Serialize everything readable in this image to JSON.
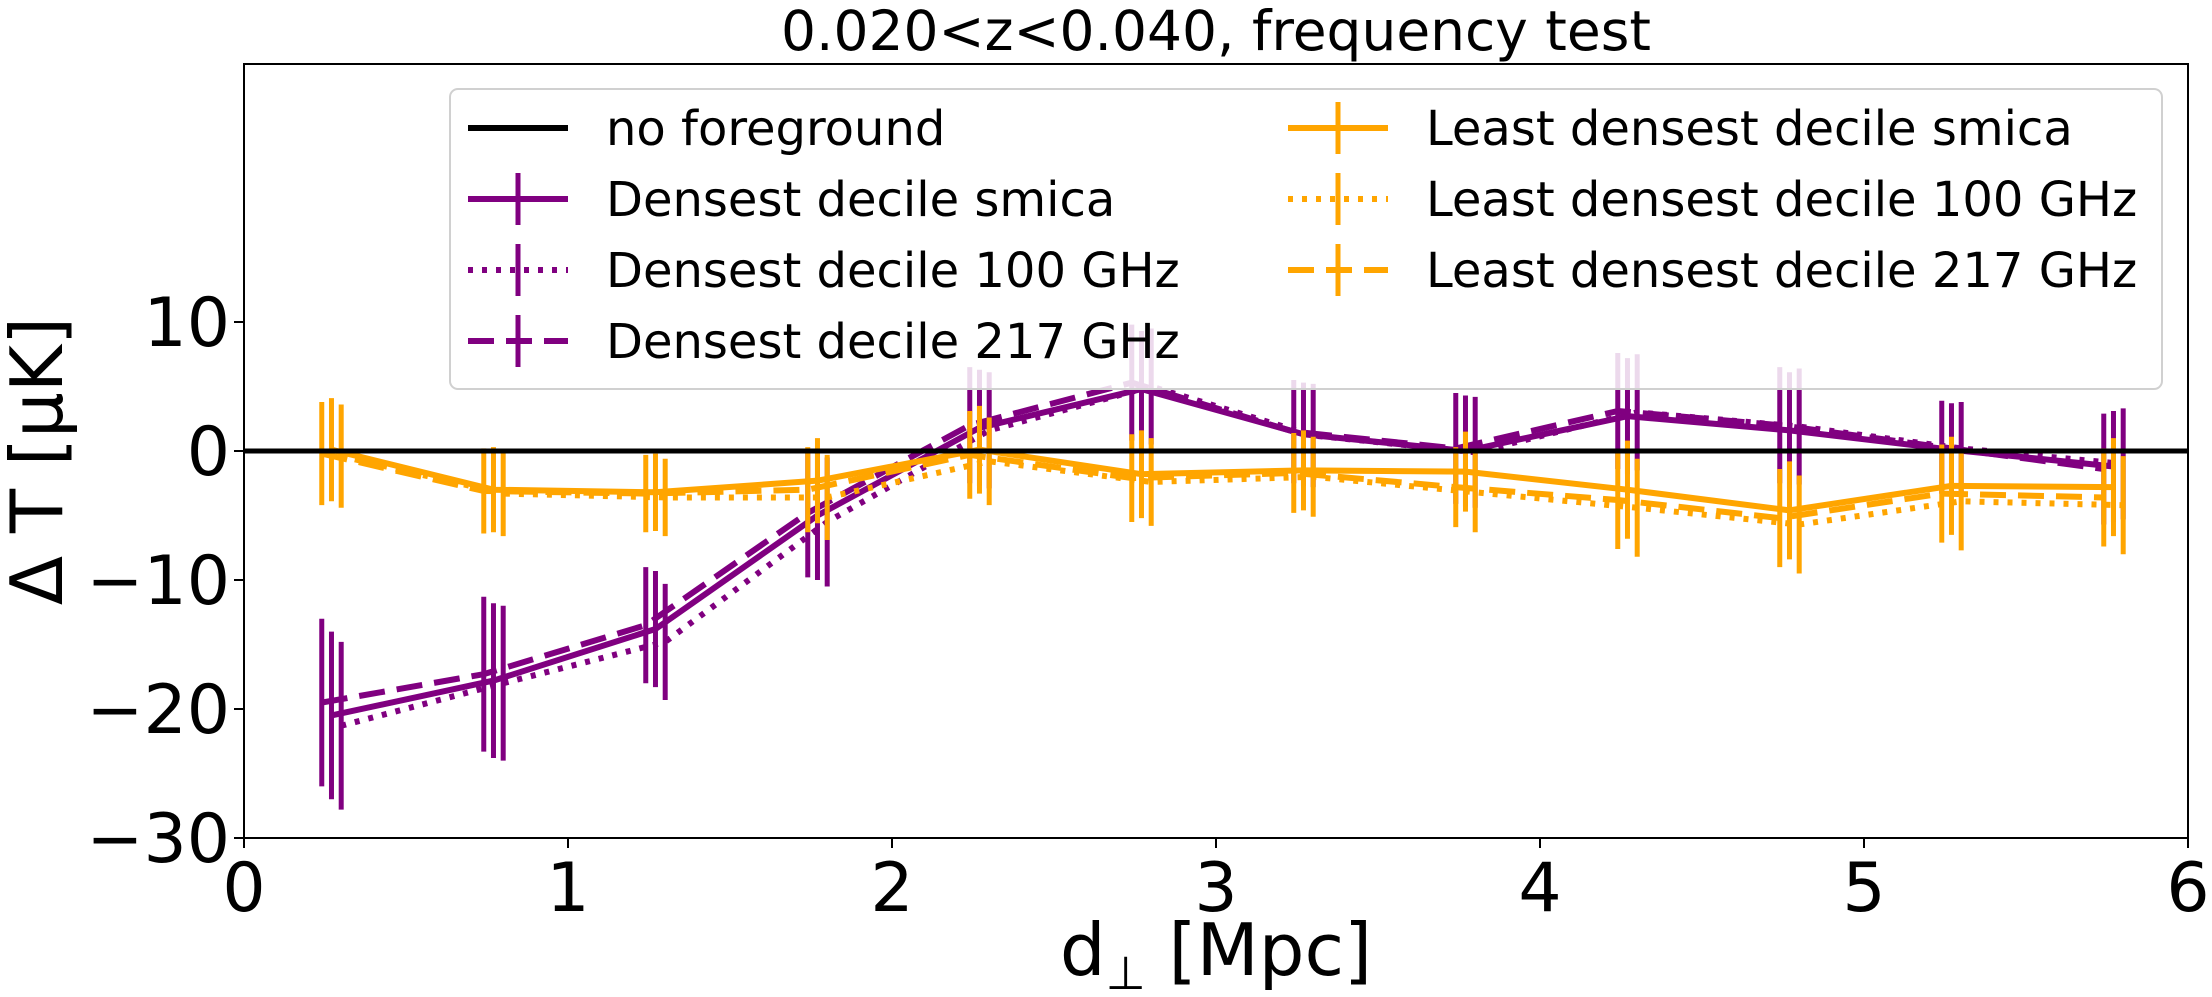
{
  "chart_data": {
    "type": "line",
    "title": "0.020<z<0.040, frequency test",
    "xlabel": "d",
    "xlabel_subscript": "⊥",
    "xlabel_unit": " [Mpc]",
    "ylabel": "Δ T [μK]",
    "xlim": [
      0,
      6
    ],
    "ylim": [
      -30,
      30
    ],
    "xticks": [
      0,
      1,
      2,
      3,
      4,
      5,
      6
    ],
    "xtick_labels": [
      "0",
      "1",
      "2",
      "3",
      "4",
      "5",
      "6"
    ],
    "yticks": [
      -30,
      -20,
      -10,
      0,
      10
    ],
    "ytick_labels": [
      "−30",
      "−20",
      "−10",
      "0",
      "10"
    ],
    "grid": false,
    "legend_position": "top-right",
    "legend_columns": 2,
    "x": [
      0.27,
      0.77,
      1.27,
      1.77,
      2.27,
      2.77,
      3.27,
      3.77,
      4.27,
      4.77,
      5.27,
      5.77
    ],
    "reference_line": {
      "name": "no foreground",
      "y": 0,
      "color": "#000000"
    },
    "series": [
      {
        "name": "Densest decile smica",
        "color": "#800080",
        "style": "solid",
        "dx": 0,
        "y": [
          -20.5,
          -17.8,
          -13.8,
          -5.0,
          1.8,
          4.8,
          1.3,
          0.0,
          2.7,
          1.6,
          0.1,
          -1.2
        ],
        "err": [
          6.5,
          6.0,
          4.5,
          5.0,
          4.5,
          4.5,
          4.0,
          4.3,
          4.5,
          4.5,
          3.6,
          4.3
        ]
      },
      {
        "name": "Densest decile 100 GHz",
        "color": "#800080",
        "style": "dotted",
        "dx": 0.03,
        "y": [
          -21.3,
          -18.0,
          -14.8,
          -5.5,
          1.6,
          5.0,
          1.2,
          -0.1,
          3.0,
          1.9,
          0.2,
          -1.0
        ],
        "err": [
          6.5,
          6.0,
          4.5,
          5.0,
          4.5,
          4.5,
          4.0,
          4.3,
          4.5,
          4.5,
          3.6,
          4.3
        ]
      },
      {
        "name": "Densest decile 217 GHz",
        "color": "#800080",
        "style": "dashed",
        "dx": -0.03,
        "y": [
          -19.5,
          -17.3,
          -13.5,
          -4.8,
          2.0,
          5.3,
          1.5,
          0.2,
          3.1,
          2.0,
          0.3,
          -1.4
        ],
        "err": [
          6.5,
          6.0,
          4.5,
          5.0,
          4.5,
          4.5,
          4.0,
          4.3,
          4.5,
          4.5,
          3.6,
          4.3
        ]
      },
      {
        "name": "Least densest decile smica",
        "color": "#FFA500",
        "style": "solid",
        "dx": 0,
        "y": [
          0.1,
          -3.0,
          -3.2,
          -2.3,
          0.1,
          -1.8,
          -1.5,
          -1.6,
          -3.0,
          -4.6,
          -2.7,
          -2.8
        ],
        "err": [
          4.0,
          3.3,
          3.0,
          3.3,
          3.4,
          3.4,
          3.1,
          3.1,
          3.8,
          3.8,
          3.8,
          3.8
        ]
      },
      {
        "name": "Least densest decile 100 GHz",
        "color": "#FFA500",
        "style": "dotted",
        "dx": 0.03,
        "y": [
          -0.4,
          -3.3,
          -3.6,
          -3.6,
          -0.8,
          -2.4,
          -2.0,
          -3.2,
          -4.4,
          -5.7,
          -3.9,
          -4.2
        ],
        "err": [
          4.0,
          3.3,
          3.0,
          3.3,
          3.4,
          3.4,
          3.1,
          3.1,
          3.8,
          3.8,
          3.8,
          3.8
        ]
      },
      {
        "name": "Least densest decile 217 GHz",
        "color": "#FFA500",
        "style": "dashed",
        "dx": -0.03,
        "y": [
          -0.2,
          -3.1,
          -3.3,
          -3.0,
          -0.3,
          -2.1,
          -1.7,
          -2.8,
          -3.8,
          -5.2,
          -3.3,
          -3.6
        ],
        "err": [
          4.0,
          3.3,
          3.0,
          3.3,
          3.4,
          3.4,
          3.1,
          3.1,
          3.8,
          3.8,
          3.8,
          3.8
        ]
      }
    ]
  }
}
